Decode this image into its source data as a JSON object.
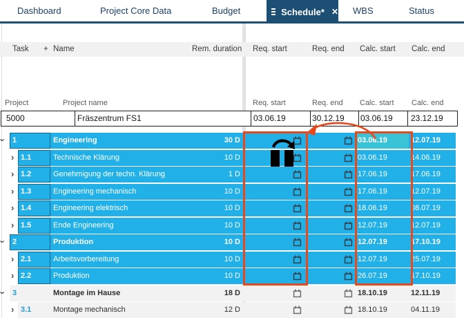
{
  "tabs": [
    {
      "label": "Dashboard",
      "active": false
    },
    {
      "label": "Project Core Data",
      "active": false
    },
    {
      "label": "Budget",
      "active": false
    },
    {
      "label": "Schedule*",
      "active": true
    },
    {
      "label": "WBS",
      "active": false
    },
    {
      "label": "Status",
      "active": false
    }
  ],
  "icons": {
    "close": "✕",
    "chevron": "›",
    "plus": "+"
  },
  "grid_header": {
    "task": "Task",
    "name": "Name",
    "rem_duration": "Rem. duration",
    "req_start": "Req. start",
    "req_end": "Req. end",
    "calc_start": "Calc. start",
    "calc_end": "Calc. end"
  },
  "project_header": {
    "project": "Project",
    "project_name": "Project name",
    "req_start": "Req. start",
    "req_end": "Req. end",
    "calc_start": "Calc. start",
    "calc_end": "Calc. end"
  },
  "project_row": {
    "id": "5000",
    "name": "Fräszentrum FS1",
    "req_start": "03.06.19",
    "req_end": "30.12.19",
    "calc_start": "03.06.19",
    "calc_end": "23.12.19"
  },
  "rows": [
    {
      "task": "1",
      "name": "Engineering",
      "duration": "30 D",
      "calc_start": "03.06.19",
      "calc_end": "12.07.19",
      "level": 1,
      "parent": true,
      "selected": true,
      "expanded": true,
      "active_cell": true,
      "drag_cursor": true
    },
    {
      "task": "1.1",
      "name": "Technische Klärung",
      "duration": "10 D",
      "calc_start": "03.06.19",
      "calc_end": "14.06.19",
      "level": 2,
      "parent": false,
      "selected": true,
      "expanded": false
    },
    {
      "task": "1.2",
      "name": "Genehmigung der techn. Klärung",
      "duration": "1 D",
      "calc_start": "17.06.19",
      "calc_end": "17.06.19",
      "level": 2,
      "parent": false,
      "selected": true,
      "expanded": false
    },
    {
      "task": "1.3",
      "name": "Engineering mechanisch",
      "duration": "10 D",
      "calc_start": "17.06.19",
      "calc_end": "12.07.19",
      "level": 2,
      "parent": false,
      "selected": true,
      "expanded": false
    },
    {
      "task": "1.4",
      "name": "Engineering elektrisch",
      "duration": "10 D",
      "calc_start": "18.06.19",
      "calc_end": "08.07.19",
      "level": 2,
      "parent": false,
      "selected": true,
      "expanded": false
    },
    {
      "task": "1.5",
      "name": "Ende Engineering",
      "duration": "10 D",
      "calc_start": "12.07.19",
      "calc_end": "12.07.19",
      "level": 2,
      "parent": false,
      "selected": true,
      "expanded": false
    },
    {
      "task": "2",
      "name": "Produktion",
      "duration": "10 D",
      "calc_start": "12.07.19",
      "calc_end": "17.10.19",
      "level": 1,
      "parent": true,
      "selected": true,
      "expanded": true
    },
    {
      "task": "2.1",
      "name": "Arbeitsvorbereitung",
      "duration": "10 D",
      "calc_start": "12.07.19",
      "calc_end": "25.07.19",
      "level": 2,
      "parent": false,
      "selected": true,
      "expanded": false
    },
    {
      "task": "2.2",
      "name": "Produktion",
      "duration": "10 D",
      "calc_start": "26.07.19",
      "calc_end": "17.10.19",
      "level": 2,
      "parent": false,
      "selected": true,
      "expanded": false
    },
    {
      "task": "3",
      "name": "Montage im Hause",
      "duration": "18 D",
      "calc_start": "18.10.19",
      "calc_end": "12.11.19",
      "level": 1,
      "parent": true,
      "selected": false,
      "expanded": true
    },
    {
      "task": "3.1",
      "name": "Montage mechanisch",
      "duration": "12 D",
      "calc_start": "18.10.19",
      "calc_end": "04.11.19",
      "level": 2,
      "parent": false,
      "selected": false,
      "expanded": false
    }
  ],
  "colors": {
    "row_selected_blue": "#21b1e8",
    "active_cell_teal": "#3ac2d6",
    "tab_navy": "#1d4e74",
    "annotation_orange": "#e8481c",
    "row_unselected_gray": "#f2f2f2"
  }
}
